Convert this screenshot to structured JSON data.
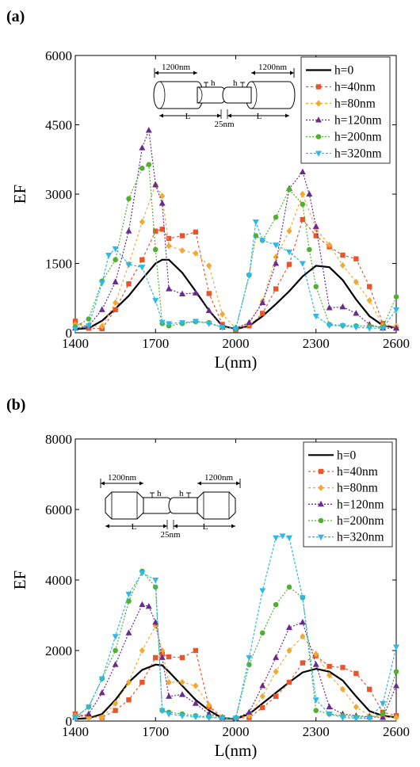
{
  "chart_data": [
    {
      "panel_label": "(a)",
      "type": "line",
      "xlabel": "L(nm)",
      "ylabel": "EF",
      "xlim": [
        1400,
        2600
      ],
      "ylim": [
        0,
        6000
      ],
      "xticks": [
        1400,
        1700,
        2000,
        2300,
        2600
      ],
      "yticks": [
        0,
        1500,
        3000,
        4500,
        6000
      ],
      "legend_placement": "top-right",
      "grid": false,
      "inset": {
        "left_length": "1200nm",
        "right_length": "1200nm",
        "h_label": "h",
        "gap": "25nm",
        "L_label": "L",
        "style": "flat"
      },
      "series": [
        {
          "name": "h=0",
          "color": "#000000",
          "dash": "",
          "marker": "none",
          "x": [
            1400,
            1450,
            1500,
            1550,
            1600,
            1650,
            1700,
            1725,
            1750,
            1800,
            1850,
            1900,
            1950,
            2000,
            2050,
            2100,
            2150,
            2200,
            2250,
            2300,
            2350,
            2400,
            2450,
            2500,
            2550,
            2600
          ],
          "y": [
            80,
            100,
            260,
            520,
            800,
            1160,
            1500,
            1580,
            1580,
            1300,
            900,
            480,
            150,
            80,
            150,
            360,
            620,
            900,
            1220,
            1450,
            1420,
            1140,
            720,
            360,
            160,
            110
          ]
        },
        {
          "name": "h=40nm",
          "color": "#e8542c",
          "dash": "3,3",
          "marker": "square",
          "x": [
            1400,
            1450,
            1500,
            1550,
            1600,
            1650,
            1700,
            1725,
            1750,
            1800,
            1850,
            1900,
            1950,
            2000,
            2050,
            2100,
            2150,
            2200,
            2250,
            2300,
            2350,
            2400,
            2450,
            2500,
            2550,
            2600
          ],
          "y": [
            250,
            100,
            90,
            500,
            1060,
            1580,
            2200,
            2240,
            2040,
            2100,
            2180,
            850,
            180,
            60,
            150,
            420,
            950,
            1480,
            2450,
            2100,
            1860,
            1680,
            1600,
            1000,
            200,
            100
          ]
        },
        {
          "name": "h=80nm",
          "color": "#f2a932",
          "dash": "3,3",
          "marker": "diamond",
          "x": [
            1400,
            1450,
            1500,
            1550,
            1600,
            1650,
            1700,
            1725,
            1750,
            1800,
            1850,
            1900,
            1950,
            2000,
            2050,
            2100,
            2150,
            2200,
            2250,
            2300,
            2350,
            2400,
            2450,
            2500,
            2550,
            2600
          ],
          "y": [
            180,
            150,
            140,
            650,
            1480,
            2400,
            3200,
            2960,
            1880,
            1780,
            1720,
            1450,
            400,
            100,
            200,
            680,
            1640,
            2200,
            3000,
            2250,
            1900,
            1460,
            1100,
            700,
            160,
            140
          ]
        },
        {
          "name": "h=120nm",
          "color": "#6a2b90",
          "dash": "2,2",
          "marker": "triangle-up",
          "x": [
            1400,
            1450,
            1500,
            1550,
            1600,
            1650,
            1675,
            1700,
            1725,
            1750,
            1800,
            1850,
            1900,
            1950,
            2000,
            2050,
            2100,
            2150,
            2200,
            2250,
            2275,
            2300,
            2350,
            2400,
            2450,
            2500,
            2550,
            2600
          ],
          "y": [
            100,
            150,
            500,
            1100,
            2200,
            4000,
            4380,
            3200,
            2800,
            950,
            840,
            860,
            480,
            120,
            100,
            220,
            650,
            1500,
            3120,
            3480,
            3000,
            2300,
            540,
            560,
            420,
            180,
            100,
            100
          ]
        },
        {
          "name": "h=200nm",
          "color": "#52b031",
          "dash": "2,2",
          "marker": "circle",
          "x": [
            1400,
            1450,
            1500,
            1550,
            1600,
            1650,
            1675,
            1700,
            1725,
            1750,
            1800,
            1850,
            1900,
            1950,
            2000,
            2050,
            2075,
            2100,
            2150,
            2200,
            2250,
            2275,
            2300,
            2350,
            2400,
            2450,
            2500,
            2550,
            2600
          ],
          "y": [
            130,
            300,
            1120,
            1580,
            2900,
            3560,
            3640,
            1800,
            200,
            150,
            200,
            240,
            220,
            120,
            80,
            1250,
            2100,
            2000,
            2500,
            3100,
            2780,
            1800,
            1000,
            180,
            160,
            150,
            140,
            120,
            780
          ]
        },
        {
          "name": "h=320nm",
          "color": "#2eb9e8",
          "dash": "3,2",
          "marker": "triangle-down",
          "x": [
            1400,
            1450,
            1500,
            1525,
            1550,
            1600,
            1650,
            1700,
            1725,
            1750,
            1800,
            1850,
            1900,
            1950,
            2000,
            2050,
            2075,
            2100,
            2150,
            2200,
            2250,
            2300,
            2350,
            2400,
            2450,
            2500,
            2550,
            2600
          ],
          "y": [
            80,
            150,
            1080,
            1680,
            1820,
            1480,
            1420,
            700,
            230,
            200,
            220,
            250,
            200,
            120,
            90,
            1240,
            2400,
            2000,
            1900,
            1750,
            1500,
            360,
            160,
            150,
            120,
            100,
            100,
            500
          ]
        }
      ]
    },
    {
      "panel_label": "(b)",
      "type": "line",
      "xlabel": "L(nm)",
      "ylabel": "EF",
      "xlim": [
        1400,
        2600
      ],
      "ylim": [
        0,
        8000
      ],
      "xticks": [
        1400,
        1700,
        2000,
        2300,
        2600
      ],
      "yticks": [
        0,
        2000,
        4000,
        6000,
        8000
      ],
      "legend_placement": "top-right",
      "grid": false,
      "inset": {
        "left_length": "1200nm",
        "right_length": "1200nm",
        "h_label": "h",
        "gap": "25nm",
        "L_label": "L",
        "style": "beveled"
      },
      "series": [
        {
          "name": "h=0",
          "color": "#000000",
          "dash": "",
          "marker": "none",
          "x": [
            1400,
            1450,
            1500,
            1550,
            1600,
            1650,
            1700,
            1725,
            1750,
            1800,
            1850,
            1900,
            1950,
            2000,
            2050,
            2100,
            2150,
            2200,
            2250,
            2300,
            2350,
            2400,
            2450,
            2500,
            2550,
            2600
          ],
          "y": [
            60,
            80,
            200,
            600,
            1100,
            1450,
            1600,
            1580,
            1400,
            1000,
            600,
            300,
            80,
            60,
            200,
            500,
            800,
            1100,
            1380,
            1480,
            1400,
            1150,
            700,
            280,
            150,
            100
          ]
        },
        {
          "name": "h=40nm",
          "color": "#e8542c",
          "dash": "3,3",
          "marker": "square",
          "x": [
            1400,
            1450,
            1500,
            1550,
            1600,
            1650,
            1700,
            1725,
            1750,
            1800,
            1850,
            1900,
            1950,
            2000,
            2050,
            2100,
            2150,
            2200,
            2250,
            2300,
            2350,
            2400,
            2450,
            2500,
            2550,
            2600
          ],
          "y": [
            200,
            120,
            100,
            300,
            600,
            1100,
            1800,
            1900,
            1820,
            1800,
            2000,
            400,
            100,
            80,
            100,
            380,
            700,
            1100,
            1650,
            1850,
            1550,
            1520,
            1350,
            900,
            250,
            150
          ]
        },
        {
          "name": "h=80nm",
          "color": "#f2a932",
          "dash": "3,3",
          "marker": "diamond",
          "x": [
            1400,
            1450,
            1500,
            1550,
            1600,
            1650,
            1700,
            1725,
            1750,
            1800,
            1850,
            1900,
            1950,
            2000,
            2050,
            2100,
            2150,
            2200,
            2250,
            2300,
            2350,
            2400,
            2450,
            2500,
            2550,
            2600
          ],
          "y": [
            150,
            100,
            100,
            500,
            1100,
            2000,
            2700,
            2000,
            1100,
            1100,
            1000,
            450,
            100,
            80,
            150,
            700,
            1400,
            2000,
            2400,
            1900,
            1300,
            900,
            400,
            150,
            120,
            100
          ]
        },
        {
          "name": "h=120nm",
          "color": "#6a2b90",
          "dash": "2,2",
          "marker": "triangle-up",
          "x": [
            1400,
            1450,
            1500,
            1550,
            1600,
            1650,
            1675,
            1700,
            1725,
            1750,
            1800,
            1850,
            1900,
            1950,
            2000,
            2050,
            2100,
            2150,
            2200,
            2250,
            2300,
            2350,
            2400,
            2450,
            2500,
            2550,
            2600
          ],
          "y": [
            100,
            200,
            800,
            1600,
            2500,
            3300,
            3250,
            2800,
            1800,
            700,
            750,
            500,
            200,
            100,
            80,
            250,
            1000,
            1800,
            2650,
            2800,
            1600,
            400,
            200,
            150,
            120,
            100,
            1000
          ]
        },
        {
          "name": "h=200nm",
          "color": "#52b031",
          "dash": "2,2",
          "marker": "circle",
          "x": [
            1400,
            1450,
            1500,
            1550,
            1600,
            1650,
            1700,
            1725,
            1750,
            1800,
            1850,
            1900,
            1950,
            2000,
            2050,
            2100,
            2150,
            2200,
            2250,
            2300,
            2350,
            2400,
            2450,
            2500,
            2550,
            2600
          ],
          "y": [
            100,
            400,
            1200,
            2000,
            3400,
            4250,
            3800,
            300,
            250,
            200,
            150,
            120,
            100,
            80,
            1600,
            2500,
            3300,
            3800,
            3500,
            300,
            200,
            150,
            120,
            100,
            200,
            1400
          ]
        },
        {
          "name": "h=320nm",
          "color": "#2eb9e8",
          "dash": "3,2",
          "marker": "triangle-down",
          "x": [
            1400,
            1450,
            1500,
            1550,
            1600,
            1650,
            1700,
            1725,
            1750,
            1800,
            1850,
            1900,
            1950,
            2000,
            2050,
            2100,
            2150,
            2175,
            2200,
            2250,
            2300,
            2350,
            2400,
            2450,
            2500,
            2550,
            2600
          ],
          "y": [
            100,
            400,
            1200,
            2400,
            3600,
            4200,
            4000,
            300,
            200,
            150,
            120,
            100,
            80,
            70,
            1800,
            3700,
            5200,
            5250,
            5200,
            3500,
            600,
            200,
            100,
            80,
            70,
            500,
            2100
          ]
        }
      ]
    }
  ]
}
